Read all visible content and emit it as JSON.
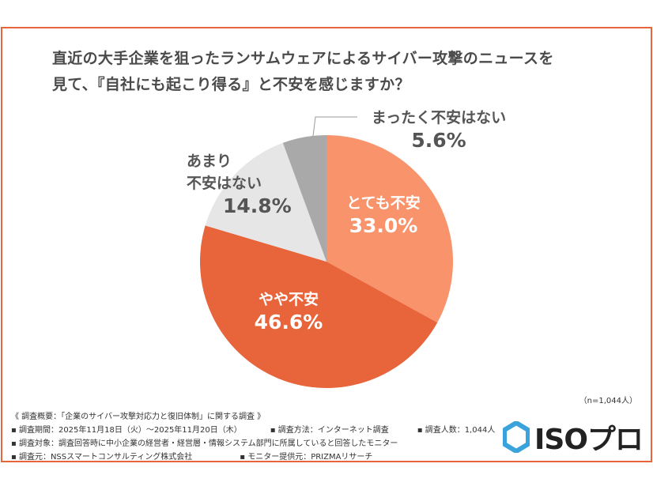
{
  "title_lines": [
    "直近の大手企業を狙ったランサムウェアによるサイバー攻撃のニュースを",
    "見て、『自社にも起こり得る』と不安を感じますか？"
  ],
  "chart_data": {
    "type": "pie",
    "title": "直近の大手企業を狙ったランサムウェアによるサイバー攻撃のニュースを見て、『自社にも起こり得る』と不安を感じますか？",
    "start": "12 o'clock, clockwise",
    "slices": [
      {
        "label": "とても不安",
        "value": 33.0,
        "value_label": "33.0%",
        "color": "#F9936B"
      },
      {
        "label": "やや不安",
        "value": 46.6,
        "value_label": "46.6%",
        "color": "#E8643A"
      },
      {
        "label": "あまり不安はない",
        "label_lines": [
          "あまり",
          "不安はない"
        ],
        "value": 14.8,
        "value_label": "14.8%",
        "color": "#E6E6E6"
      },
      {
        "label": "まったく不安はない",
        "value": 5.6,
        "value_label": "5.6%",
        "color": "#A9A9A9"
      }
    ],
    "legend": "none"
  },
  "sample_size": "（n=1,044人）",
  "footer": {
    "overview": "《 調査概要：「企業のサイバー攻撃対応力と復旧体制」に関する調査 》",
    "period": "▪ 調査期間：2025年11月18日（火）～2025年11月20日（木）",
    "method": "▪ 調査方法：インターネット調査",
    "count": "▪ 調査人数：1,044人",
    "target": "▪ 調査対象：調査回答時に中小企業の経営者・経営層・情報システム部門に所属していると回答したモニター",
    "org": "▪ 調査元：NSSスマートコンサルティング株式会社",
    "provider": "▪ モニター提供元：PRIZMAリサーチ"
  },
  "logo": {
    "text": "ISOプロ",
    "color": "#3BA3DC"
  }
}
